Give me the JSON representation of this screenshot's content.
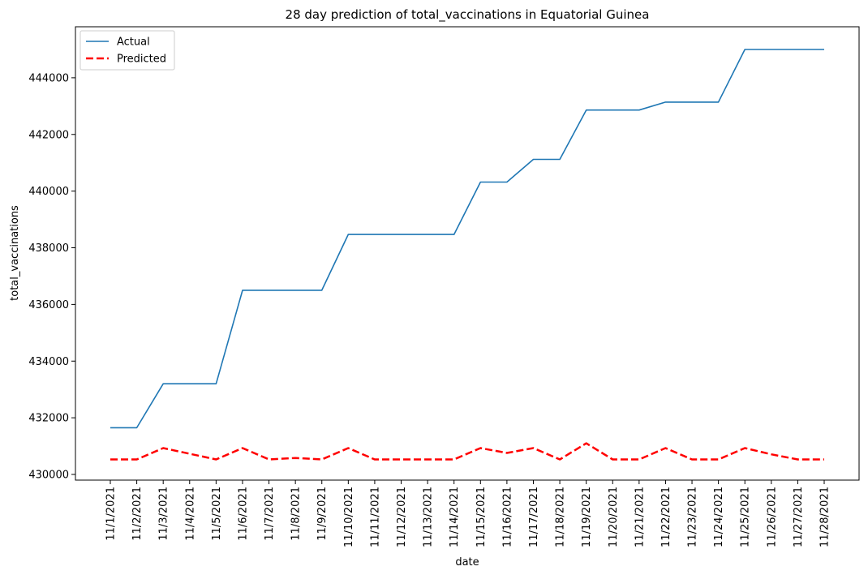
{
  "chart_data": {
    "type": "line",
    "title": "28 day prediction of total_vaccinations in Equatorial Guinea",
    "xlabel": "date",
    "ylabel": "total_vaccinations",
    "ylim": [
      429800,
      445800
    ],
    "y_ticks": [
      430000,
      432000,
      434000,
      436000,
      438000,
      440000,
      442000,
      444000
    ],
    "grid": false,
    "legend_position": "top-left",
    "categories": [
      "11/1/2021",
      "11/2/2021",
      "11/3/2021",
      "11/4/2021",
      "11/5/2021",
      "11/6/2021",
      "11/7/2021",
      "11/8/2021",
      "11/9/2021",
      "11/10/2021",
      "11/11/2021",
      "11/12/2021",
      "11/13/2021",
      "11/14/2021",
      "11/15/2021",
      "11/16/2021",
      "11/17/2021",
      "11/18/2021",
      "11/19/2021",
      "11/20/2021",
      "11/21/2021",
      "11/22/2021",
      "11/23/2021",
      "11/24/2021",
      "11/25/2021",
      "11/26/2021",
      "11/27/2021",
      "11/28/2021"
    ],
    "series": [
      {
        "name": "Actual",
        "color": "#1f77b4",
        "dash": "solid",
        "values": [
          431650,
          431650,
          433200,
          433200,
          433200,
          436500,
          436500,
          436500,
          436500,
          438470,
          438470,
          438470,
          438470,
          438470,
          440320,
          440320,
          441120,
          441120,
          442860,
          442860,
          442860,
          443140,
          443140,
          443140,
          445000,
          445000,
          445000,
          445000
        ]
      },
      {
        "name": "Predicted",
        "color": "#ff0000",
        "dash": "dashed",
        "values": [
          430530,
          430530,
          430930,
          430730,
          430530,
          430930,
          430530,
          430580,
          430530,
          430930,
          430530,
          430530,
          430530,
          430530,
          430930,
          430760,
          430930,
          430530,
          431100,
          430530,
          430530,
          430930,
          430530,
          430530,
          430930,
          430710,
          430530,
          430530
        ]
      }
    ]
  }
}
